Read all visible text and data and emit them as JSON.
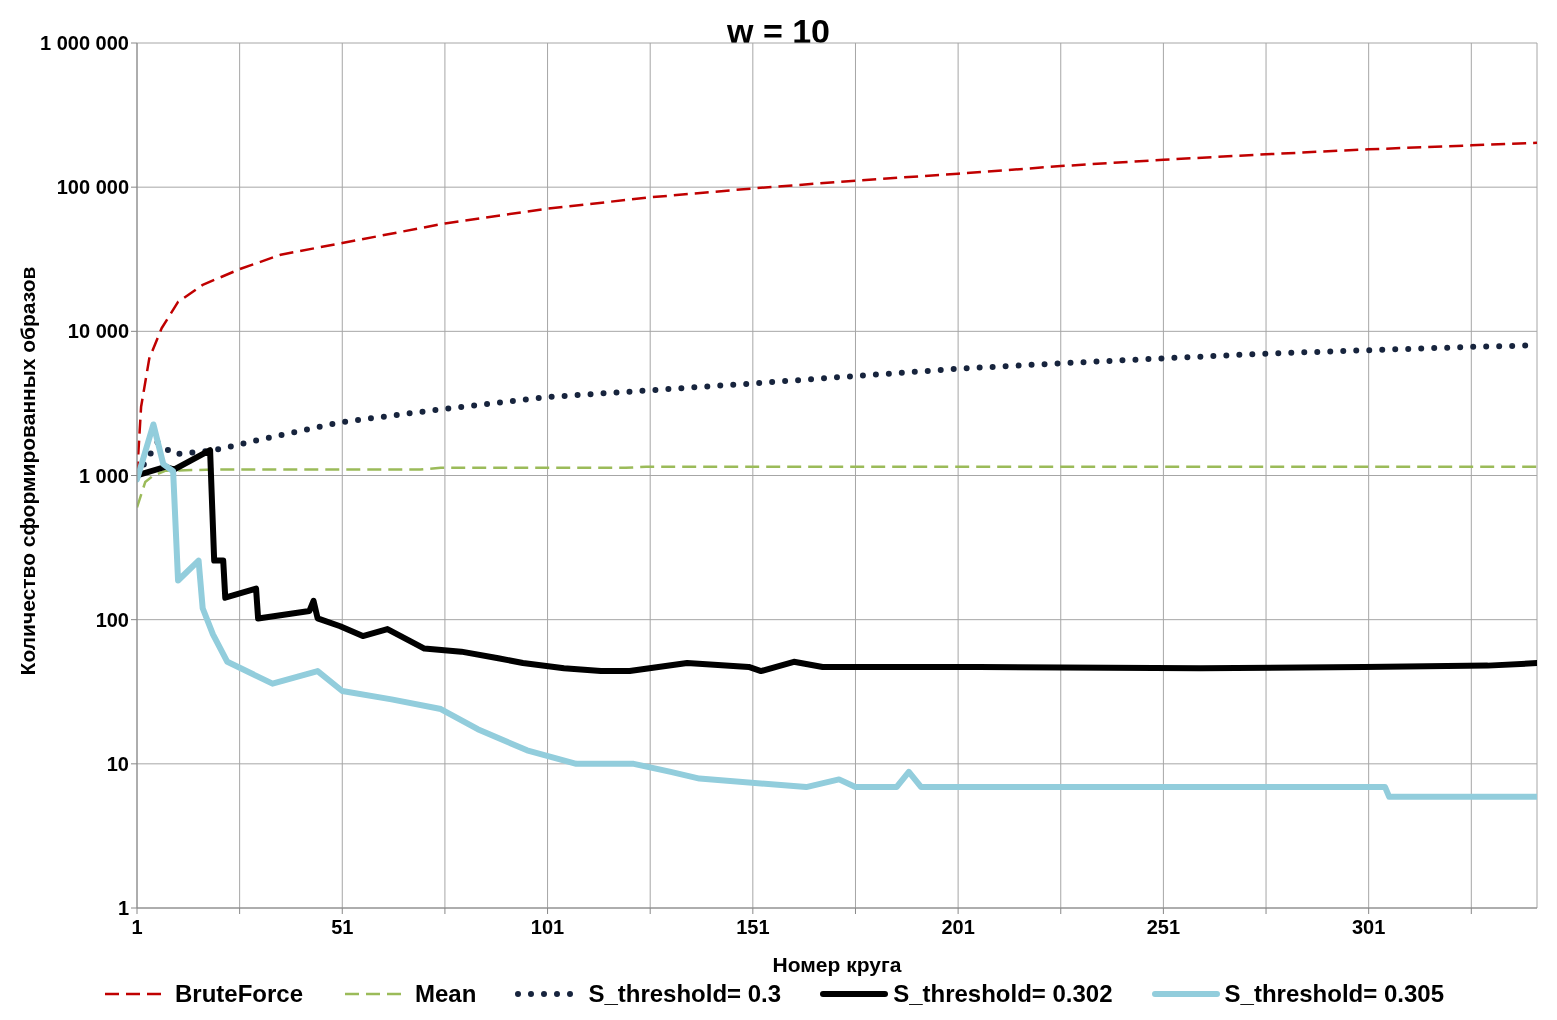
{
  "chart_data": {
    "type": "line",
    "title": "w = 10",
    "xlabel": "Номер круга",
    "ylabel": "Количество сформированных образов",
    "log": "y",
    "grid": true,
    "legend": "bottom",
    "marker": "none",
    "xlim": [
      1,
      342
    ],
    "xticks": [
      1,
      {
        "value": 26,
        "label": null
      },
      51,
      {
        "value": 76,
        "label": null
      },
      101,
      {
        "value": 126,
        "label": null
      },
      151,
      {
        "value": 176,
        "label": null
      },
      201,
      {
        "value": 226,
        "label": null
      },
      251,
      {
        "value": 276,
        "label": null
      },
      301,
      {
        "value": 326,
        "label": null
      }
    ],
    "ylim": [
      1,
      1000000
    ],
    "yticks": [
      1,
      10,
      100,
      {
        "value": 1000,
        "label": "1 000"
      },
      {
        "value": 10000,
        "label": "10 000"
      },
      {
        "value": 100000,
        "label": "100 000"
      },
      {
        "value": 1000000,
        "label": "1 000 000"
      }
    ],
    "series": [
      {
        "name": "BruteForce",
        "color": "#c00000",
        "line_style": "dashed",
        "x": [
          1,
          2,
          4,
          7,
          11,
          17,
          26,
          36,
          51,
          76,
          101,
          126,
          151,
          176,
          201,
          226,
          251,
          276,
          301,
          326,
          342
        ],
        "values": [
          1000,
          3000,
          6500,
          10500,
          16000,
          21000,
          27000,
          34000,
          41000,
          56000,
          71000,
          85000,
          98000,
          111000,
          124000,
          140000,
          155000,
          169000,
          183000,
          195000,
          203000
        ]
      },
      {
        "name": "Mean",
        "color": "#9bbb59",
        "line_style": "dashed",
        "x": [
          1,
          3,
          5,
          8,
          20,
          70,
          75,
          120,
          125,
          200,
          342
        ],
        "values": [
          600,
          900,
          1000,
          1080,
          1100,
          1100,
          1130,
          1130,
          1150,
          1150,
          1150
        ]
      },
      {
        "name": "S_threshold= 0.3",
        "color": "#17243d",
        "line_style": "dotted",
        "x": [
          1,
          6,
          10,
          20,
          30,
          51,
          76,
          101,
          126,
          151,
          176,
          201,
          226,
          251,
          276,
          301,
          326,
          342
        ],
        "values": [
          1000,
          1700,
          1400,
          1500,
          1750,
          2350,
          2900,
          3500,
          3900,
          4350,
          4900,
          5500,
          6000,
          6500,
          7000,
          7400,
          7800,
          8000
        ]
      },
      {
        "name": "S_threshold= 0.302",
        "color": "#000000",
        "line_style": "solid",
        "x": [
          1,
          8,
          10,
          18.8,
          19.8,
          22,
          22.5,
          30,
          30.5,
          43,
          44,
          45,
          50.5,
          56,
          62,
          71,
          80,
          89,
          95,
          105,
          114,
          121,
          135,
          150,
          153,
          161,
          168,
          206,
          260,
          300,
          330,
          342
        ],
        "values": [
          1000,
          1150,
          1100,
          1500,
          257,
          257,
          142,
          164,
          102,
          115,
          135,
          102,
          90,
          77,
          86,
          63,
          60,
          54,
          50,
          46,
          44,
          44,
          50,
          47,
          44,
          51,
          47,
          47,
          46,
          47,
          48,
          50
        ]
      },
      {
        "name": "S_threshold= 0.305",
        "color": "#92cddc",
        "line_style": "solid",
        "x": [
          1,
          5,
          7.4,
          9.8,
          11,
          16,
          17,
          19.5,
          23,
          34,
          45,
          51,
          63,
          75,
          84,
          96,
          108,
          122,
          131,
          138,
          164,
          172,
          176,
          186,
          189,
          192,
          305,
          306,
          342
        ],
        "values": [
          940,
          2260,
          1200,
          1070,
          187,
          257,
          120,
          79,
          51,
          36,
          44,
          32,
          28,
          24,
          17.4,
          12.4,
          10,
          10,
          8.8,
          7.9,
          6.9,
          7.8,
          6.9,
          6.9,
          8.8,
          6.9,
          6.9,
          5.9,
          5.9
        ]
      }
    ]
  }
}
